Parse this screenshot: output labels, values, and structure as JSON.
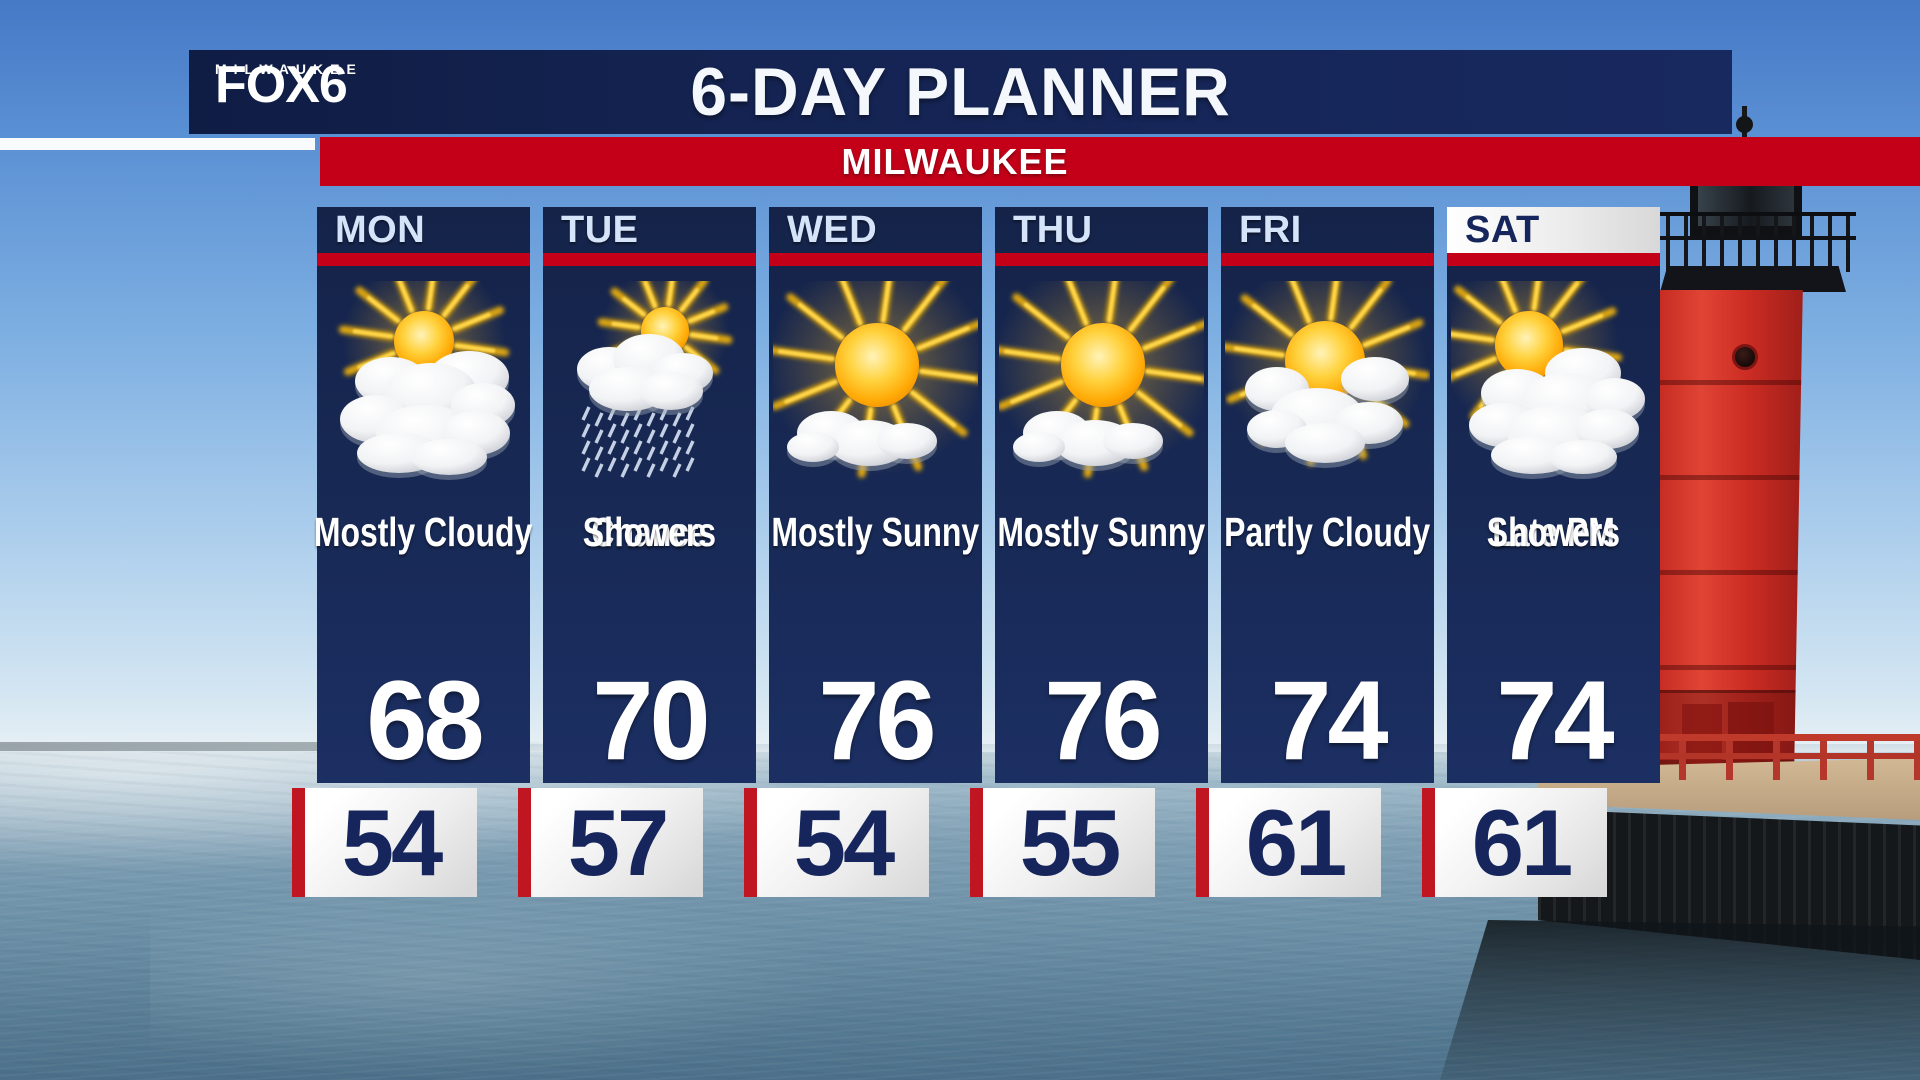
{
  "station": {
    "name": "FOX6",
    "market": "MILWAUKEE"
  },
  "header": {
    "title": "6-DAY PLANNER",
    "location": "MILWAUKEE"
  },
  "forecast": {
    "days": [
      {
        "label": "MON",
        "condition": "Mostly Cloudy",
        "lines": [
          "Mostly Cloudy"
        ],
        "high": "68",
        "low": "54",
        "icon": "mostly-cloudy",
        "highlight": false
      },
      {
        "label": "TUE",
        "condition": "Chance Showers",
        "lines": [
          "Chance",
          "Showers"
        ],
        "high": "70",
        "low": "57",
        "icon": "chance-showers",
        "highlight": false
      },
      {
        "label": "WED",
        "condition": "Mostly Sunny",
        "lines": [
          "Mostly Sunny"
        ],
        "high": "76",
        "low": "54",
        "icon": "mostly-sunny",
        "highlight": false
      },
      {
        "label": "THU",
        "condition": "Mostly Sunny",
        "lines": [
          "Mostly Sunny"
        ],
        "high": "76",
        "low": "55",
        "icon": "mostly-sunny",
        "highlight": false
      },
      {
        "label": "FRI",
        "condition": "Partly Cloudy",
        "lines": [
          "Partly Cloudy"
        ],
        "high": "74",
        "low": "61",
        "icon": "partly-cloudy",
        "highlight": false
      },
      {
        "label": "SAT",
        "condition": "Late PM Showers",
        "lines": [
          "Late PM",
          "Showers"
        ],
        "high": "74",
        "low": "61",
        "icon": "late-pm-showers",
        "highlight": true
      }
    ]
  },
  "colors": {
    "navy": "#152349",
    "red": "#c40018",
    "day_text": "#d6e4fa",
    "low_temp_text": "#16265c",
    "highlight_header": "#ffffff",
    "stripe_red": "#c01622"
  },
  "background_scene": [
    "blue-sky",
    "lake-water",
    "red-lighthouse",
    "pier-breakwater",
    "red-railing"
  ]
}
